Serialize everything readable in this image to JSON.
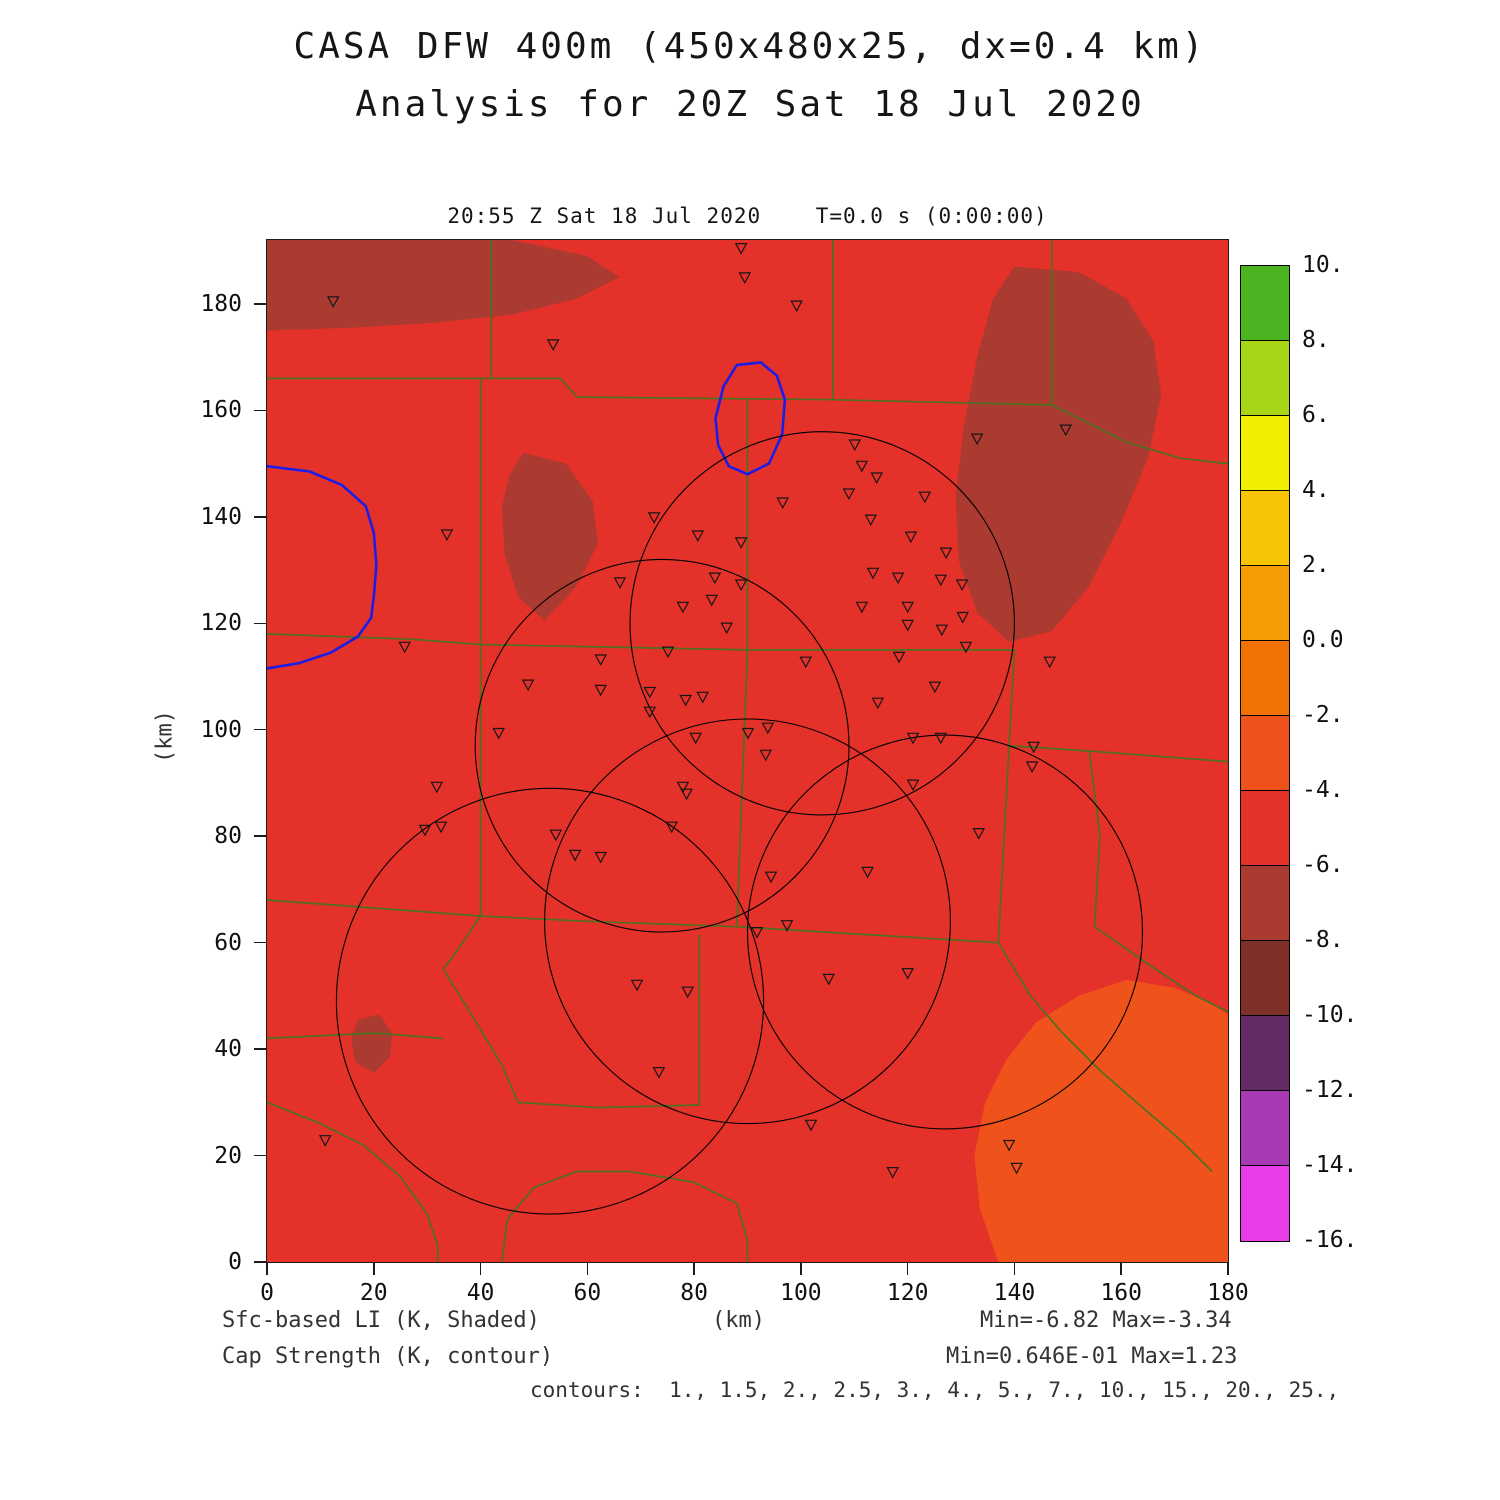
{
  "title": {
    "line1": "CASA DFW 400m (450x480x25, dx=0.4 km)",
    "line2": "Analysis for 20Z Sat 18 Jul 2020"
  },
  "plot_header": "20:55 Z Sat 18 Jul 2020    T=0.0 s (0:00:00)",
  "axes": {
    "ylabel": "(km)",
    "xlabel": "(km)",
    "x_ticks": [
      0,
      20,
      40,
      60,
      80,
      100,
      120,
      140,
      160,
      180
    ],
    "y_ticks": [
      0,
      20,
      40,
      60,
      80,
      100,
      120,
      140,
      160,
      180
    ],
    "x_range": [
      0,
      180
    ],
    "y_range": [
      0,
      192
    ]
  },
  "footer": {
    "shaded_label": "Sfc-based LI (K, Shaded)",
    "contour_label": "Cap Strength (K, contour)",
    "x_unit": "(km)",
    "shaded_minmax": "Min=-6.82 Max=-3.34",
    "contour_minmax": "Min=0.646E-01 Max=1.23",
    "contour_levels_line": "contours:  1., 1.5, 2., 2.5, 3., 4., 5., 7., 10., 15., 20., 25.,"
  },
  "colorbar": {
    "tick_labels": [
      "10.",
      "8.",
      "6.",
      "4.",
      "2.",
      "0.0",
      "-2.",
      "-4.",
      "-6.",
      "-8.",
      "-10.",
      "-12.",
      "-14.",
      "-16."
    ],
    "segments": [
      {
        "range": [
          8,
          10
        ],
        "color": "#4ab520"
      },
      {
        "range": [
          6,
          8
        ],
        "color": "#a6d616"
      },
      {
        "range": [
          4,
          6
        ],
        "color": "#f2ee02"
      },
      {
        "range": [
          2,
          4
        ],
        "color": "#f6c402"
      },
      {
        "range": [
          0,
          2
        ],
        "color": "#f79b02"
      },
      {
        "range": [
          -2,
          0
        ],
        "color": "#f17104"
      },
      {
        "range": [
          -4,
          -2
        ],
        "color": "#f0521b"
      },
      {
        "range": [
          -6,
          -4
        ],
        "color": "#e43129"
      },
      {
        "range": [
          -8,
          -6
        ],
        "color": "#ab3a31"
      },
      {
        "range": [
          -10,
          -8
        ],
        "color": "#7e2f28"
      },
      {
        "range": [
          -12,
          -10
        ],
        "color": "#632a64"
      },
      {
        "range": [
          -14,
          -12
        ],
        "color": "#a83ab4"
      },
      {
        "range": [
          -16,
          -14
        ],
        "color": "#e83ce8"
      }
    ]
  },
  "chart_data": {
    "type": "heatmap",
    "title": "CASA DFW 400m (450x480x25, dx=0.4 km) Analysis for 20Z Sat 18 Jul 2020",
    "valid_time": "20:55 Z Sat 18 Jul 2020",
    "model_time": "T=0.0 s (0:00:00)",
    "xlabel": "(km)",
    "ylabel": "(km)",
    "x_range": [
      0,
      180
    ],
    "y_range": [
      0,
      192
    ],
    "shaded_field": "Sfc-based LI (K)",
    "shaded_min": -6.82,
    "shaded_max": -3.34,
    "dominant_shaded_band": [
      -6,
      -4
    ],
    "dark_region_band": [
      -8,
      -6
    ],
    "warm_region_band": [
      -4,
      -2
    ],
    "contour_field": "Cap Strength (K)",
    "contour_min": 0.0646,
    "contour_max": 1.23,
    "contour_levels": [
      1,
      1.5,
      2,
      2.5,
      3,
      4,
      5,
      7,
      10,
      15,
      20,
      25
    ],
    "colors": {
      "background": "#e43129",
      "dark_shade": "#ab3a31",
      "warm_shade": "#f0521b",
      "county_line": "#4f701d",
      "contour_line": "#1c1ce8",
      "circle_line": "#000000",
      "marker_line": "#161616"
    },
    "dark_regions": [
      [
        [
          0,
          192
        ],
        [
          46,
          192
        ],
        [
          60,
          189
        ],
        [
          66,
          185
        ],
        [
          58,
          181
        ],
        [
          46,
          178
        ],
        [
          32,
          176.5
        ],
        [
          16,
          175.5
        ],
        [
          0,
          175
        ]
      ],
      [
        [
          48,
          152
        ],
        [
          56,
          150
        ],
        [
          61,
          143
        ],
        [
          62,
          135
        ],
        [
          58,
          127
        ],
        [
          52,
          120.5
        ],
        [
          47,
          125
        ],
        [
          44.5,
          133
        ],
        [
          44,
          142
        ],
        [
          45.5,
          148
        ]
      ],
      [
        [
          140,
          187
        ],
        [
          152,
          186
        ],
        [
          161,
          181
        ],
        [
          166,
          173
        ],
        [
          167.5,
          163
        ],
        [
          165,
          151
        ],
        [
          160,
          139
        ],
        [
          154,
          127
        ],
        [
          147,
          118.5
        ],
        [
          139,
          116.5
        ],
        [
          133,
          122
        ],
        [
          129.5,
          132
        ],
        [
          129,
          144
        ],
        [
          130.5,
          157
        ],
        [
          133,
          170
        ],
        [
          136,
          181
        ]
      ],
      [
        [
          17,
          45.5
        ],
        [
          21,
          46.5
        ],
        [
          23.5,
          43
        ],
        [
          23,
          38.5
        ],
        [
          20,
          35.5
        ],
        [
          16.5,
          37.5
        ],
        [
          15.8,
          42
        ]
      ]
    ],
    "warm_regions": [
      [
        [
          137,
          0
        ],
        [
          133.5,
          10
        ],
        [
          132.5,
          20
        ],
        [
          134.5,
          30
        ],
        [
          138.5,
          38
        ],
        [
          144,
          45
        ],
        [
          152,
          50
        ],
        [
          161,
          53
        ],
        [
          170,
          51.5
        ],
        [
          177,
          48.5
        ],
        [
          180,
          46.5
        ],
        [
          180,
          0
        ]
      ]
    ],
    "county_lines": [
      [
        [
          0,
          166
        ],
        [
          55,
          166
        ],
        [
          58,
          162.5
        ],
        [
          106,
          162
        ]
      ],
      [
        [
          42,
          192
        ],
        [
          42,
          166
        ]
      ],
      [
        [
          106,
          192
        ],
        [
          106,
          162
        ]
      ],
      [
        [
          106,
          162
        ],
        [
          147,
          161
        ]
      ],
      [
        [
          147,
          192
        ],
        [
          147,
          161
        ]
      ],
      [
        [
          147,
          161
        ],
        [
          161,
          154
        ],
        [
          171,
          151
        ],
        [
          180,
          150
        ]
      ],
      [
        [
          90,
          162.3
        ],
        [
          90,
          115
        ]
      ],
      [
        [
          0,
          118
        ],
        [
          27,
          117
        ],
        [
          40,
          116
        ],
        [
          90,
          115
        ]
      ],
      [
        [
          40,
          166
        ],
        [
          40,
          116
        ]
      ],
      [
        [
          90,
          115
        ],
        [
          140,
          115
        ]
      ],
      [
        [
          140,
          115
        ],
        [
          139,
          97
        ]
      ],
      [
        [
          139,
          97
        ],
        [
          154,
          96
        ]
      ],
      [
        [
          154,
          96
        ],
        [
          180,
          94
        ]
      ],
      [
        [
          139,
          97
        ],
        [
          137,
          60
        ]
      ],
      [
        [
          90,
          115
        ],
        [
          88,
          63
        ]
      ],
      [
        [
          40,
          65
        ],
        [
          60,
          64
        ],
        [
          88,
          63
        ]
      ],
      [
        [
          88,
          63
        ],
        [
          137,
          60
        ]
      ],
      [
        [
          40,
          116
        ],
        [
          40,
          65
        ]
      ],
      [
        [
          0,
          68
        ],
        [
          20,
          66.5
        ],
        [
          40,
          65
        ]
      ],
      [
        [
          0,
          42
        ],
        [
          20,
          43
        ],
        [
          33,
          42
        ]
      ],
      [
        [
          40,
          65
        ],
        [
          36,
          59
        ],
        [
          33,
          55
        ]
      ],
      [
        [
          33,
          55
        ],
        [
          38,
          47
        ],
        [
          44,
          37
        ],
        [
          47,
          30
        ]
      ],
      [
        [
          47,
          30
        ],
        [
          62,
          29
        ],
        [
          81,
          29.5
        ]
      ],
      [
        [
          81,
          61.5
        ],
        [
          81,
          29.5
        ]
      ],
      [
        [
          44,
          0
        ],
        [
          45,
          8
        ],
        [
          50,
          14
        ],
        [
          58,
          17
        ],
        [
          68,
          17
        ],
        [
          80,
          15
        ],
        [
          88,
          11
        ],
        [
          90,
          4
        ],
        [
          90,
          0
        ]
      ],
      [
        [
          0,
          30
        ],
        [
          10,
          26
        ],
        [
          18,
          22
        ],
        [
          25,
          16
        ],
        [
          30,
          9
        ],
        [
          32,
          3
        ],
        [
          32,
          0
        ]
      ],
      [
        [
          137,
          60
        ],
        [
          143,
          50
        ],
        [
          149,
          43
        ],
        [
          156,
          36
        ],
        [
          164,
          29
        ],
        [
          171,
          23
        ],
        [
          177,
          17
        ]
      ],
      [
        [
          154,
          96
        ],
        [
          156,
          80
        ],
        [
          155,
          63
        ]
      ],
      [
        [
          155,
          63
        ],
        [
          165,
          56
        ],
        [
          174,
          50
        ],
        [
          180,
          47
        ]
      ]
    ],
    "cap_contours": [
      {
        "closed": true,
        "points": [
          [
            88,
            168.5
          ],
          [
            92.5,
            169
          ],
          [
            95.5,
            166.5
          ],
          [
            97,
            162
          ],
          [
            96.5,
            155.5
          ],
          [
            94,
            150
          ],
          [
            90,
            148
          ],
          [
            86.5,
            149.5
          ],
          [
            84.5,
            153.5
          ],
          [
            84,
            158.5
          ],
          [
            85.5,
            164.5
          ]
        ]
      },
      {
        "closed": false,
        "points": [
          [
            0,
            149.5
          ],
          [
            8,
            148.5
          ],
          [
            14,
            146
          ],
          [
            18.5,
            142
          ],
          [
            20,
            137
          ],
          [
            20.5,
            131
          ],
          [
            20,
            125
          ],
          [
            19.5,
            121
          ],
          [
            17,
            117.5
          ],
          [
            12,
            114.5
          ],
          [
            6,
            112.5
          ],
          [
            0,
            111.5
          ]
        ]
      }
    ],
    "radar_circles": [
      {
        "cx": 104,
        "cy": 120,
        "r": 36
      },
      {
        "cx": 74,
        "cy": 97,
        "r": 35
      },
      {
        "cx": 53,
        "cy": 49,
        "r": 40
      },
      {
        "cx": 90,
        "cy": 64,
        "r": 38
      },
      {
        "cx": 127,
        "cy": 62,
        "r": 37
      }
    ],
    "stations": [
      [
        12.4,
        180.5
      ],
      [
        88.8,
        190.5
      ],
      [
        89.5,
        185
      ],
      [
        99.2,
        179.7
      ],
      [
        53.6,
        172.4
      ],
      [
        149.6,
        156.4
      ],
      [
        133,
        154.7
      ],
      [
        110.1,
        153.6
      ],
      [
        111.4,
        149.6
      ],
      [
        114.2,
        147.4
      ],
      [
        109,
        144.4
      ],
      [
        123.2,
        143.8
      ],
      [
        96.6,
        142.7
      ],
      [
        113.1,
        139.5
      ],
      [
        33.7,
        136.7
      ],
      [
        72.5,
        139.9
      ],
      [
        80.7,
        136.5
      ],
      [
        88.8,
        135.2
      ],
      [
        120.6,
        136.3
      ],
      [
        127.2,
        133.3
      ],
      [
        113.5,
        129.5
      ],
      [
        118.2,
        128.6
      ],
      [
        83.9,
        128.6
      ],
      [
        88.8,
        127.3
      ],
      [
        126.2,
        128.2
      ],
      [
        130.2,
        127.3
      ],
      [
        66.1,
        127.7
      ],
      [
        77.9,
        123.1
      ],
      [
        83.3,
        124.4
      ],
      [
        111.4,
        123.1
      ],
      [
        120,
        123.1
      ],
      [
        126.4,
        118.8
      ],
      [
        130.3,
        121.2
      ],
      [
        120,
        119.7
      ],
      [
        86.1,
        119.2
      ],
      [
        25.8,
        115.6
      ],
      [
        130.9,
        115.6
      ],
      [
        75.1,
        114.7
      ],
      [
        100.9,
        112.8
      ],
      [
        118.4,
        113.7
      ],
      [
        146.6,
        112.8
      ],
      [
        62.5,
        113.2
      ],
      [
        48.9,
        108.5
      ],
      [
        62.5,
        107.5
      ],
      [
        71.7,
        107.1
      ],
      [
        78.4,
        105.6
      ],
      [
        81.6,
        106.2
      ],
      [
        125.1,
        108.1
      ],
      [
        114.4,
        105.1
      ],
      [
        71.7,
        103.4
      ],
      [
        93.8,
        100.4
      ],
      [
        90.1,
        99.4
      ],
      [
        121,
        98.5
      ],
      [
        126.2,
        98.5
      ],
      [
        43.4,
        99.4
      ],
      [
        80.3,
        98.5
      ],
      [
        93.4,
        95.3
      ],
      [
        143.6,
        96.8
      ],
      [
        121,
        89.7
      ],
      [
        31.8,
        89.3
      ],
      [
        77.9,
        89.3
      ],
      [
        78.6,
        88
      ],
      [
        143.3,
        93.1
      ],
      [
        29.6,
        81.2
      ],
      [
        32.6,
        81.8
      ],
      [
        75.8,
        81.8
      ],
      [
        133.3,
        80.6
      ],
      [
        54.1,
        80.3
      ],
      [
        57.7,
        76.5
      ],
      [
        62.5,
        76.1
      ],
      [
        94.4,
        72.4
      ],
      [
        112.5,
        73.3
      ],
      [
        91.8,
        62
      ],
      [
        97.4,
        63.3
      ],
      [
        69.3,
        52.1
      ],
      [
        78.8,
        50.8
      ],
      [
        105.2,
        53.2
      ],
      [
        120,
        54.3
      ],
      [
        73.4,
        35.7
      ],
      [
        101.9,
        25.8
      ],
      [
        10.9,
        22.9
      ],
      [
        139,
        22
      ],
      [
        117.2,
        16.9
      ],
      [
        140.4,
        17.7
      ]
    ]
  }
}
